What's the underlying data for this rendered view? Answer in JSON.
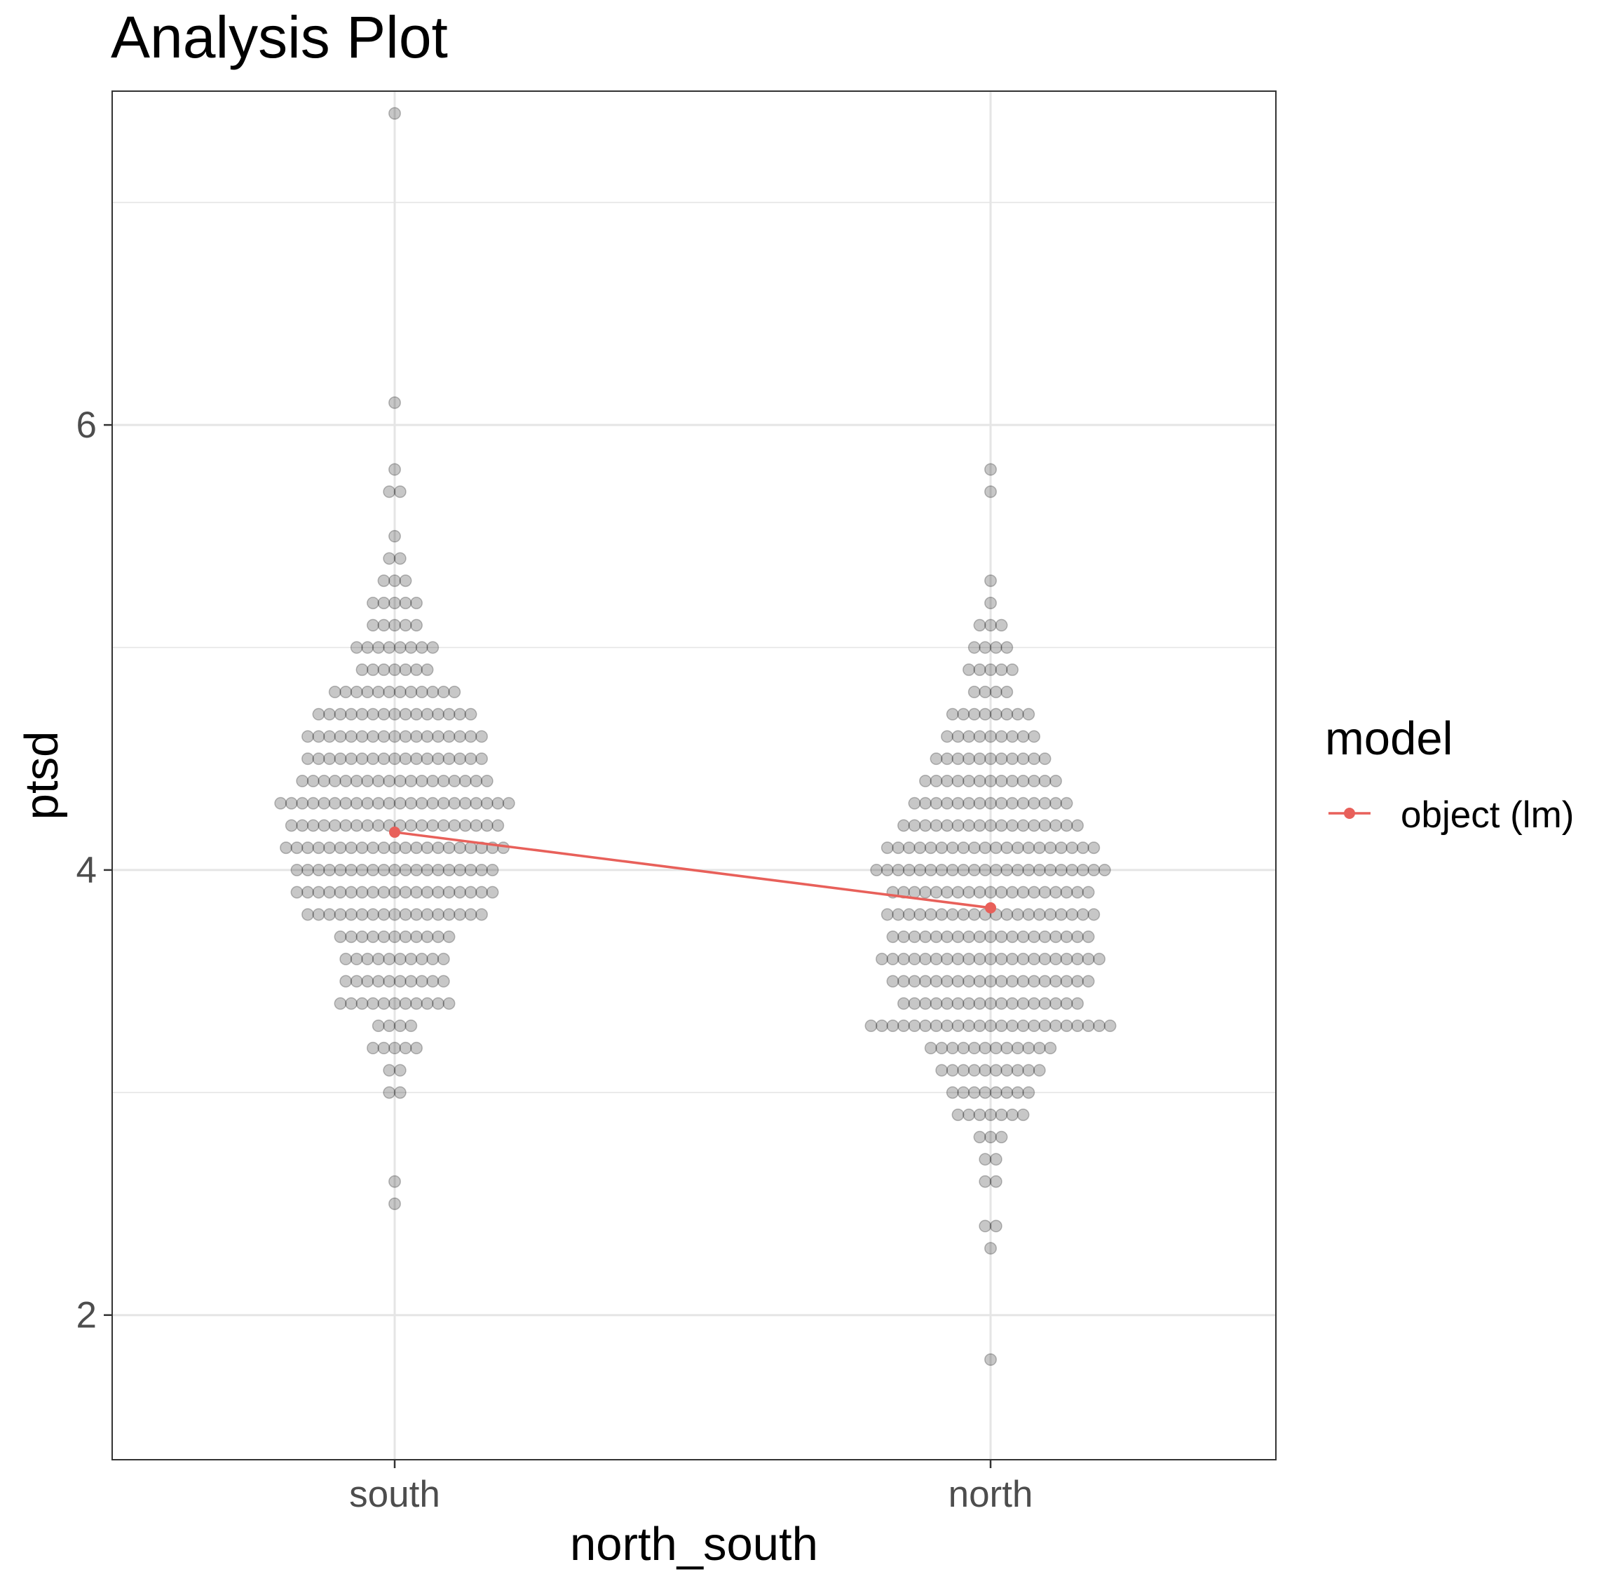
{
  "chart_data": {
    "type": "scatter",
    "title": "Analysis Plot",
    "xlabel": "north_south",
    "ylabel": "ptsd",
    "categories": [
      "south",
      "north"
    ],
    "y_ticks": [
      "2",
      "4",
      "6"
    ],
    "ylim": [
      1.35,
      7.5
    ],
    "grid": true,
    "legend": {
      "title": "model",
      "position": "right",
      "entries": [
        "object (lm)"
      ]
    },
    "colors": {
      "points": "#000000",
      "model": "#e8605a",
      "grid": "#e5e5e5",
      "panel_border": "#333333"
    },
    "series": [
      {
        "category": "south",
        "style": "beeswarm points",
        "values_by_bin": [
          [
            2.5,
            1
          ],
          [
            2.6,
            1
          ],
          [
            3.0,
            2
          ],
          [
            3.1,
            2
          ],
          [
            3.2,
            5
          ],
          [
            3.3,
            4
          ],
          [
            3.4,
            11
          ],
          [
            3.5,
            10
          ],
          [
            3.6,
            10
          ],
          [
            3.7,
            11
          ],
          [
            3.8,
            17
          ],
          [
            3.9,
            19
          ],
          [
            4.0,
            19
          ],
          [
            4.1,
            21
          ],
          [
            4.2,
            20
          ],
          [
            4.3,
            22
          ],
          [
            4.4,
            18
          ],
          [
            4.5,
            17
          ],
          [
            4.6,
            17
          ],
          [
            4.7,
            15
          ],
          [
            4.8,
            12
          ],
          [
            4.9,
            7
          ],
          [
            5.0,
            8
          ],
          [
            5.1,
            5
          ],
          [
            5.2,
            5
          ],
          [
            5.3,
            3
          ],
          [
            5.4,
            2
          ],
          [
            5.5,
            1
          ],
          [
            5.7,
            2
          ],
          [
            5.8,
            1
          ],
          [
            6.1,
            1
          ],
          [
            7.4,
            1
          ]
        ]
      },
      {
        "category": "north",
        "style": "beeswarm points",
        "values_by_bin": [
          [
            1.8,
            1
          ],
          [
            2.3,
            1
          ],
          [
            2.4,
            2
          ],
          [
            2.6,
            2
          ],
          [
            2.7,
            2
          ],
          [
            2.8,
            3
          ],
          [
            2.9,
            7
          ],
          [
            3.0,
            8
          ],
          [
            3.1,
            10
          ],
          [
            3.2,
            12
          ],
          [
            3.3,
            23
          ],
          [
            3.4,
            17
          ],
          [
            3.5,
            19
          ],
          [
            3.6,
            21
          ],
          [
            3.7,
            19
          ],
          [
            3.8,
            20
          ],
          [
            3.9,
            19
          ],
          [
            4.0,
            22
          ],
          [
            4.1,
            20
          ],
          [
            4.2,
            17
          ],
          [
            4.3,
            15
          ],
          [
            4.4,
            13
          ],
          [
            4.5,
            11
          ],
          [
            4.6,
            9
          ],
          [
            4.7,
            8
          ],
          [
            4.8,
            4
          ],
          [
            4.9,
            5
          ],
          [
            5.0,
            4
          ],
          [
            5.1,
            3
          ],
          [
            5.2,
            1
          ],
          [
            5.3,
            1
          ],
          [
            5.7,
            1
          ],
          [
            5.8,
            1
          ]
        ]
      },
      {
        "name": "object (lm)",
        "style": "line with points",
        "categories": [
          "south",
          "north"
        ],
        "values": [
          4.17,
          3.83
        ]
      }
    ]
  }
}
